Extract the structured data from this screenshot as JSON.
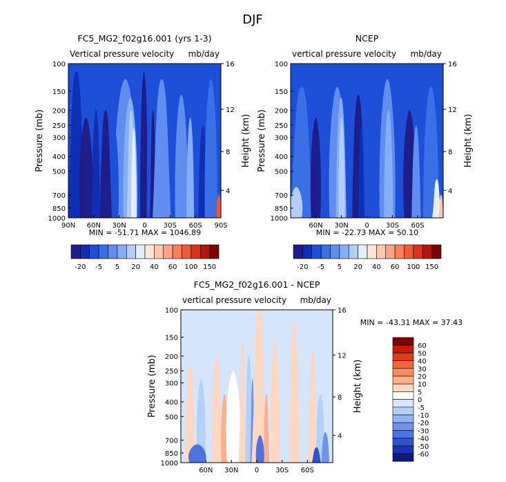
{
  "figure_title": "DJF",
  "axes_labels": {
    "pressure": "Pressure (mb)",
    "height": "Height (km)"
  },
  "chart_data": [
    {
      "type": "heatmap",
      "title": "FC5_MG2_f02g16.001 (yrs 1-3)",
      "subtitle_left": "Vertical pressure velocity",
      "subtitle_right": "mb/day",
      "x_ticks": [
        "90N",
        "60N",
        "30N",
        "0",
        "30S",
        "60S",
        "90S"
      ],
      "y_ticks": [
        "100",
        "150",
        "200",
        "250",
        "300",
        "400",
        "500",
        "700",
        "850",
        "1000"
      ],
      "height_ticks": [
        "16",
        "12",
        "8",
        "4"
      ],
      "stats": "MIN = -51.71   MAX = 1046.89",
      "colorbar_labels": [
        "-20",
        "-5",
        "5",
        "20",
        "40",
        "60",
        "100",
        "150"
      ]
    },
    {
      "type": "heatmap",
      "title": "NCEP",
      "subtitle_left": "vertical pressure velocity",
      "subtitle_right": "mb/day",
      "x_ticks": [
        "60N",
        "30N",
        "0",
        "30S",
        "60S"
      ],
      "y_ticks": [
        "100",
        "150",
        "200",
        "250",
        "300",
        "400",
        "500",
        "700",
        "850",
        "1000"
      ],
      "height_ticks": [
        "16",
        "12",
        "8",
        "4"
      ],
      "stats": "MIN = -22.73   MAX =  50.10",
      "colorbar_labels": [
        "-20",
        "-5",
        "5",
        "20",
        "40",
        "60",
        "100",
        "150"
      ]
    },
    {
      "type": "heatmap",
      "title": "FC5_MG2_f02g16.001 - NCEP",
      "subtitle_left": "vertical pressure velocity",
      "subtitle_right": "mb/day",
      "x_ticks": [
        "60N",
        "30N",
        "0",
        "30S",
        "60S"
      ],
      "y_ticks": [
        "100",
        "150",
        "200",
        "250",
        "300",
        "400",
        "500",
        "700",
        "850",
        "1000"
      ],
      "height_ticks": [
        "16",
        "12",
        "8",
        "4"
      ],
      "stats": "MIN = -43.31   MAX =  37.43",
      "colorbar_labels": [
        "60",
        "50",
        "40",
        "30",
        "20",
        "10",
        "5",
        "0",
        "-5",
        "-10",
        "-20",
        "-30",
        "-40",
        "-50",
        "-60"
      ]
    }
  ],
  "palette_main": [
    "#1d1d8c",
    "#0f2fb5",
    "#1e4fd8",
    "#3b6fe6",
    "#5f8df0",
    "#86aef5",
    "#b3cdf9",
    "#e3eefe",
    "#ffe6d6",
    "#fdc7ad",
    "#fba585",
    "#f7805d",
    "#ef5a37",
    "#dd3318",
    "#b3160b",
    "#7a0404"
  ],
  "palette_diff": [
    "#7a0404",
    "#c81a0a",
    "#e43a16",
    "#f2643a",
    "#f98a62",
    "#fbb08b",
    "#fdd8c2",
    "#ffffff",
    "#d7e6fb",
    "#b7d0f7",
    "#93b3f1",
    "#6e93ea",
    "#4c73e0",
    "#2f52cf",
    "#1a33b3",
    "#101a7a"
  ]
}
